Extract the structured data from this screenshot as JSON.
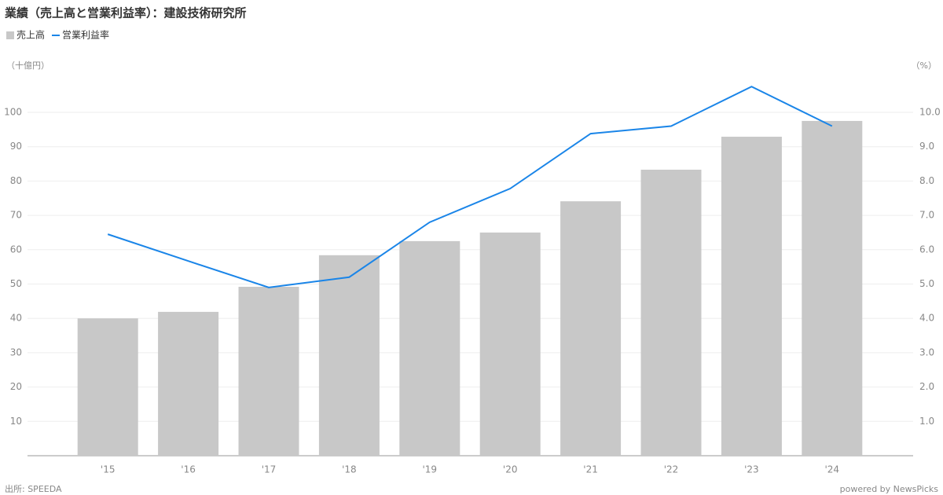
{
  "chart_data": {
    "type": "bar-line",
    "title": "業績（売上高と営業利益率）：建設技術研究所",
    "y_unit": "（十億円）",
    "y2_unit": "（%）",
    "source": "出所: SPEEDA",
    "credit": "powered by NewsPicks",
    "categories": [
      "'15",
      "'16",
      "'17",
      "'18",
      "'19",
      "'20",
      "'21",
      "'22",
      "'23",
      "'24"
    ],
    "series": [
      {
        "name": "売上高",
        "type": "bar",
        "color": "#c8c8c8",
        "values": [
          40.0,
          41.9,
          49.2,
          58.4,
          62.5,
          65.0,
          74.1,
          83.3,
          92.9,
          97.5
        ]
      },
      {
        "name": "営業利益率",
        "type": "line",
        "axis": "y2",
        "color": "#1a85e8",
        "values": [
          6.45,
          5.67,
          4.9,
          5.2,
          6.8,
          7.78,
          9.38,
          9.6,
          10.75,
          9.6
        ]
      }
    ],
    "ylim": [
      0,
      110
    ],
    "yticks": [
      10,
      20,
      30,
      40,
      50,
      60,
      70,
      80,
      90,
      100
    ],
    "y2lim": [
      0,
      11
    ],
    "y2ticks": [
      {
        "value": 1,
        "label": "1.0"
      },
      {
        "value": 2,
        "label": "2.0"
      },
      {
        "value": 3,
        "label": "3.0"
      },
      {
        "value": 4,
        "label": "4.0"
      },
      {
        "value": 5,
        "label": "5.0"
      },
      {
        "value": 6,
        "label": "6.0"
      },
      {
        "value": 7,
        "label": "7.0"
      },
      {
        "value": 8,
        "label": "8.0"
      },
      {
        "value": 9,
        "label": "9.0"
      },
      {
        "value": 10,
        "label": "10.0"
      }
    ],
    "grid": true
  }
}
